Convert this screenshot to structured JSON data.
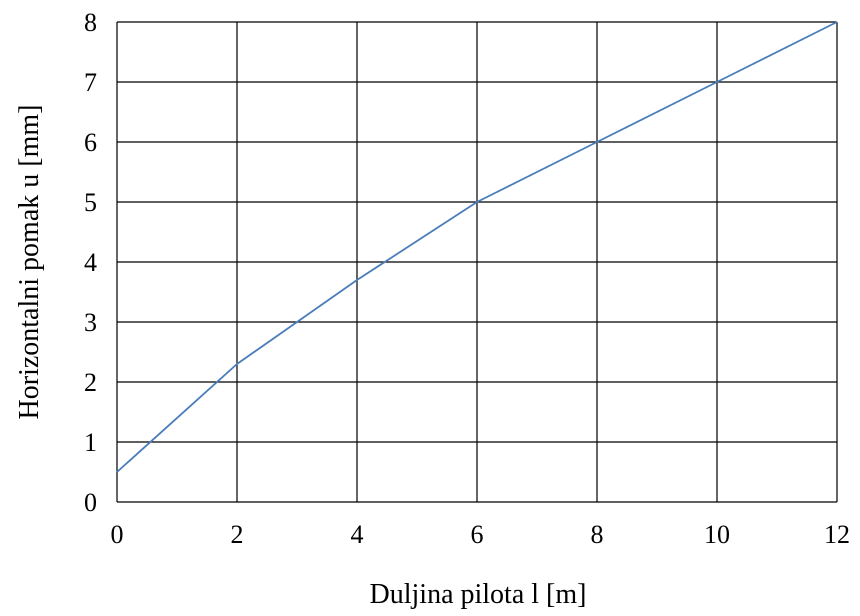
{
  "chart_data": {
    "type": "line",
    "title": "",
    "xlabel": "Duljina pilota l [m]",
    "ylabel": "Horizontalni pomak u [mm]",
    "xlim": [
      0,
      12
    ],
    "ylim": [
      0,
      8
    ],
    "xticks": [
      "0",
      "2",
      "4",
      "6",
      "8",
      "10",
      "12"
    ],
    "yticks": [
      "0",
      "1",
      "2",
      "3",
      "4",
      "5",
      "6",
      "7",
      "8"
    ],
    "grid": true,
    "legend": "none",
    "series": [
      {
        "color": "#4a7ebb",
        "x": [
          0,
          2,
          4,
          6,
          8,
          10,
          12
        ],
        "y": [
          0.5,
          2.3,
          3.7,
          5.0,
          6.0,
          7.0,
          8.0
        ]
      }
    ]
  }
}
